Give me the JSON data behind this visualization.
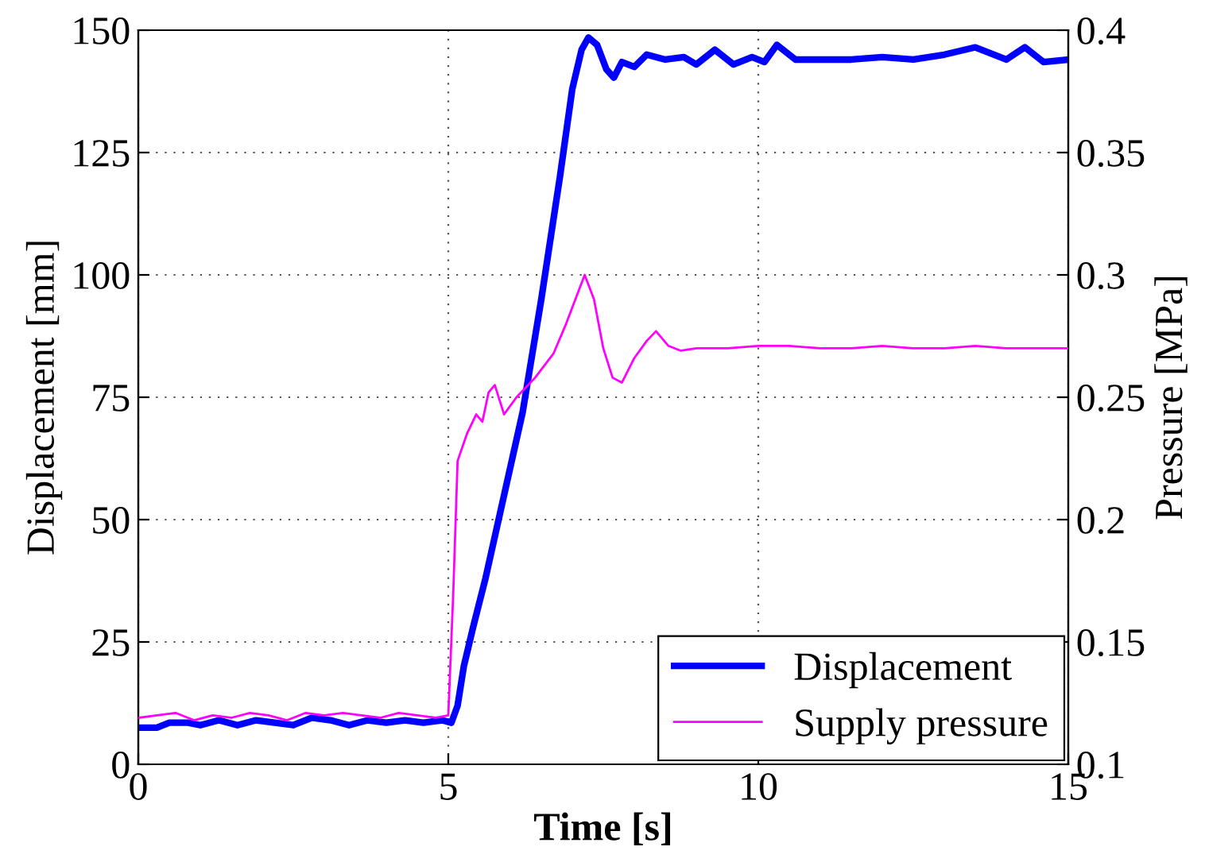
{
  "chart_data": {
    "type": "line",
    "xlabel": "Time [s]",
    "ylabel": "Displacement [mm]",
    "y2label": "Pressure [MPa]",
    "xlim": [
      0,
      15
    ],
    "xticks": [
      0,
      5,
      10,
      15
    ],
    "ylim": [
      0,
      150
    ],
    "yticks": [
      0,
      25,
      50,
      75,
      100,
      125,
      150
    ],
    "y2lim": [
      0.1,
      0.4
    ],
    "y2ticks": [
      0.1,
      0.15,
      0.2,
      0.25,
      0.3,
      0.35,
      0.4
    ],
    "grid": true,
    "legend": "bottom right",
    "line_style": "solid",
    "marker": "none",
    "series": [
      {
        "name": "Displacement",
        "color": "#0000ff",
        "x": [
          0,
          0.3,
          0.5,
          0.8,
          1.0,
          1.3,
          1.6,
          1.9,
          2.2,
          2.5,
          2.8,
          3.1,
          3.4,
          3.7,
          4.0,
          4.3,
          4.6,
          4.9,
          5.05,
          5.15,
          5.25,
          5.4,
          5.6,
          5.9,
          6.2,
          6.5,
          6.8,
          7.0,
          7.15,
          7.26,
          7.4,
          7.55,
          7.67,
          7.8,
          8.0,
          8.2,
          8.5,
          8.8,
          9.0,
          9.3,
          9.6,
          9.9,
          10.1,
          10.3,
          10.6,
          11.0,
          11.5,
          12.0,
          12.5,
          13.0,
          13.5,
          14.0,
          14.3,
          14.6,
          15.0
        ],
        "values": [
          7.5,
          7.5,
          8.5,
          8.5,
          8,
          9,
          8,
          9,
          8.5,
          8,
          9.5,
          9,
          8,
          9,
          8.5,
          9,
          8.5,
          9,
          8.5,
          12,
          20,
          28,
          38,
          55,
          72,
          95,
          120,
          138,
          146,
          148.5,
          147,
          142,
          140.3,
          143.5,
          142.5,
          145,
          144,
          144.5,
          143,
          146,
          143,
          144.5,
          143.5,
          147,
          144,
          144,
          144,
          144.5,
          144,
          145,
          146.5,
          144,
          146.5,
          143.5,
          144
        ]
      },
      {
        "name": "Supply pressure",
        "color": "#ff00ff",
        "axis": "y2",
        "x": [
          0,
          0.3,
          0.6,
          0.9,
          1.2,
          1.5,
          1.8,
          2.1,
          2.4,
          2.7,
          3.0,
          3.3,
          3.6,
          3.9,
          4.2,
          4.5,
          4.8,
          5.0,
          5.08,
          5.15,
          5.3,
          5.45,
          5.55,
          5.65,
          5.75,
          5.9,
          6.1,
          6.4,
          6.7,
          6.9,
          7.05,
          7.2,
          7.35,
          7.5,
          7.65,
          7.8,
          8.0,
          8.2,
          8.35,
          8.55,
          8.75,
          9.0,
          9.5,
          10.0,
          10.5,
          11.0,
          11.5,
          12.0,
          12.5,
          13.0,
          13.5,
          14.0,
          14.5,
          15.0
        ],
        "values": [
          0.119,
          0.12,
          0.121,
          0.118,
          0.12,
          0.119,
          0.121,
          0.12,
          0.118,
          0.121,
          0.12,
          0.121,
          0.12,
          0.119,
          0.121,
          0.12,
          0.119,
          0.12,
          0.17,
          0.224,
          0.235,
          0.243,
          0.24,
          0.252,
          0.255,
          0.243,
          0.25,
          0.258,
          0.268,
          0.28,
          0.29,
          0.3,
          0.29,
          0.27,
          0.258,
          0.256,
          0.266,
          0.273,
          0.277,
          0.271,
          0.269,
          0.27,
          0.27,
          0.271,
          0.271,
          0.27,
          0.27,
          0.271,
          0.27,
          0.27,
          0.271,
          0.27,
          0.27,
          0.27
        ]
      }
    ]
  }
}
